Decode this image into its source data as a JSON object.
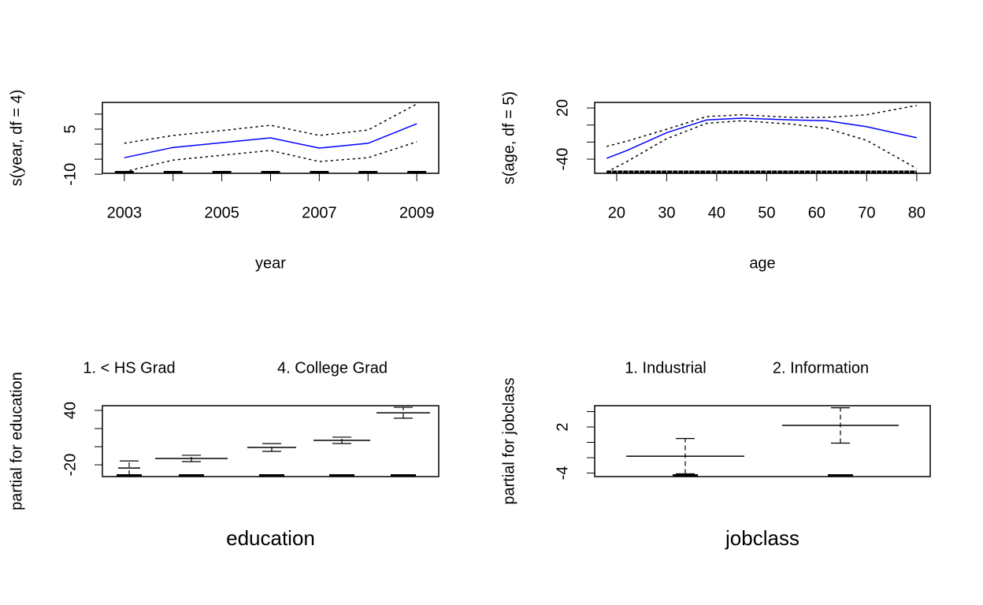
{
  "chart_data": [
    {
      "type": "line",
      "xlabel": "year",
      "ylabel": "s(year, df = 4)",
      "x": [
        2003,
        2004,
        2005,
        2006,
        2007,
        2008,
        2009
      ],
      "values": [
        -4.5,
        -1.1,
        0.5,
        2.1,
        -1.3,
        0.3,
        6.8
      ],
      "upper": [
        0.3,
        2.9,
        4.5,
        6.3,
        2.9,
        4.7,
        13.4
      ],
      "lower": [
        -9.2,
        -5.3,
        -3.7,
        -2.1,
        -5.8,
        -4.5,
        0.8
      ],
      "color": "#0000ff",
      "xlim": [
        2002.55,
        2009.45
      ],
      "xticks": [
        2003,
        2005,
        2007,
        2009
      ],
      "xtick_marks": [
        2003,
        2004,
        2005,
        2006,
        2007,
        2008,
        2009
      ],
      "ylim": [
        -9.7,
        13.9
      ],
      "yticks": [
        -10,
        5
      ],
      "ytick_marks": [
        -10,
        -5,
        0,
        5,
        10
      ]
    },
    {
      "type": "line",
      "xlabel": "age",
      "ylabel": "s(age, df = 5)",
      "x": [
        18,
        22,
        30,
        38,
        45,
        55,
        62,
        70,
        80
      ],
      "values": [
        -39,
        -30,
        -9,
        6,
        8,
        6,
        5,
        -2,
        -15
      ],
      "upper": [
        -25,
        -19,
        -5,
        10,
        12,
        9,
        9,
        12,
        23
      ],
      "lower": [
        -55,
        -43,
        -16,
        2,
        5,
        1,
        -4,
        -18,
        -51
      ],
      "color": "#0000ff",
      "xlim": [
        15.6,
        82.7
      ],
      "xticks": [
        20,
        30,
        40,
        50,
        60,
        70,
        80
      ],
      "xtick_marks": [
        20,
        30,
        40,
        50,
        60,
        70,
        80
      ],
      "ylim": [
        -56.6,
        26.5
      ],
      "yticks": [
        -40,
        20
      ],
      "ytick_marks": [
        -40,
        -20,
        0,
        20
      ]
    },
    {
      "type": "errorbar",
      "xlabel": "education",
      "ylabel": "partial for education",
      "categories": [
        "1. < HS Grad",
        null,
        null,
        "4. College Grad",
        null
      ],
      "values": [
        -23.5,
        -13,
        -0.9,
        7,
        37.4
      ],
      "errors": [
        7.8,
        3.5,
        4.3,
        3.5,
        6
      ],
      "ylim": [
        -33,
        45.2
      ],
      "yticks": [
        -20,
        40
      ],
      "ytick_marks": [
        -20,
        0,
        20,
        40
      ]
    },
    {
      "type": "errorbar",
      "xlabel": "jobclass",
      "ylabel": "partial for jobclass",
      "categories": [
        "1. Industrial",
        "2. Information"
      ],
      "values": [
        -1.8,
        2.2
      ],
      "errors": [
        2.3,
        2.3
      ],
      "ylim": [
        -4.46,
        4.77
      ],
      "yticks": [
        -4,
        2
      ],
      "ytick_marks": [
        -4,
        -2,
        0,
        2,
        4
      ]
    }
  ]
}
